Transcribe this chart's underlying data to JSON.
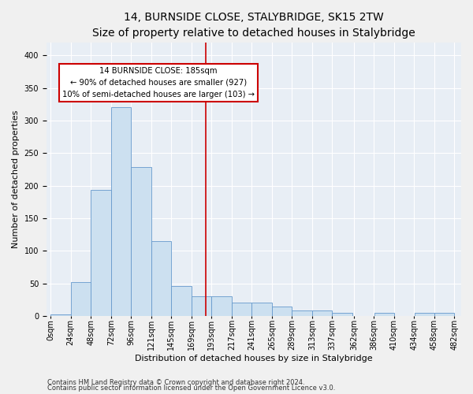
{
  "title": "14, BURNSIDE CLOSE, STALYBRIDGE, SK15 2TW",
  "subtitle": "Size of property relative to detached houses in Stalybridge",
  "xlabel": "Distribution of detached houses by size in Stalybridge",
  "ylabel": "Number of detached properties",
  "footer1": "Contains HM Land Registry data © Crown copyright and database right 2024.",
  "footer2": "Contains public sector information licensed under the Open Government Licence v3.0.",
  "bar_left_edges": [
    0,
    24,
    48,
    72,
    96,
    120,
    144,
    168,
    192,
    216,
    240,
    264,
    288,
    312,
    336,
    362,
    386,
    410,
    434,
    458
  ],
  "bar_heights": [
    2,
    52,
    194,
    320,
    228,
    115,
    46,
    30,
    30,
    20,
    20,
    14,
    8,
    8,
    5,
    0,
    5,
    0,
    5,
    5
  ],
  "bin_width": 24,
  "bar_color": "#cce0f0",
  "bar_edge_color": "#6699cc",
  "vline_x": 185,
  "vline_color": "#cc0000",
  "annotation_line1": "14 BURNSIDE CLOSE: 185sqm",
  "annotation_line2": "← 90% of detached houses are smaller (927)",
  "annotation_line3": "10% of semi-detached houses are larger (103) →",
  "annotation_box_color": "#cc0000",
  "ylim": [
    0,
    420
  ],
  "yticks": [
    0,
    50,
    100,
    150,
    200,
    250,
    300,
    350,
    400
  ],
  "xtick_labels": [
    "0sqm",
    "24sqm",
    "48sqm",
    "72sqm",
    "96sqm",
    "121sqm",
    "145sqm",
    "169sqm",
    "193sqm",
    "217sqm",
    "241sqm",
    "265sqm",
    "289sqm",
    "313sqm",
    "337sqm",
    "362sqm",
    "386sqm",
    "410sqm",
    "434sqm",
    "458sqm",
    "482sqm"
  ],
  "bg_color": "#e8eef5",
  "grid_color": "#ffffff",
  "fig_bg_color": "#f0f0f0",
  "title_fontsize": 10,
  "label_fontsize": 8,
  "footer_fontsize": 6,
  "tick_fontsize": 7
}
